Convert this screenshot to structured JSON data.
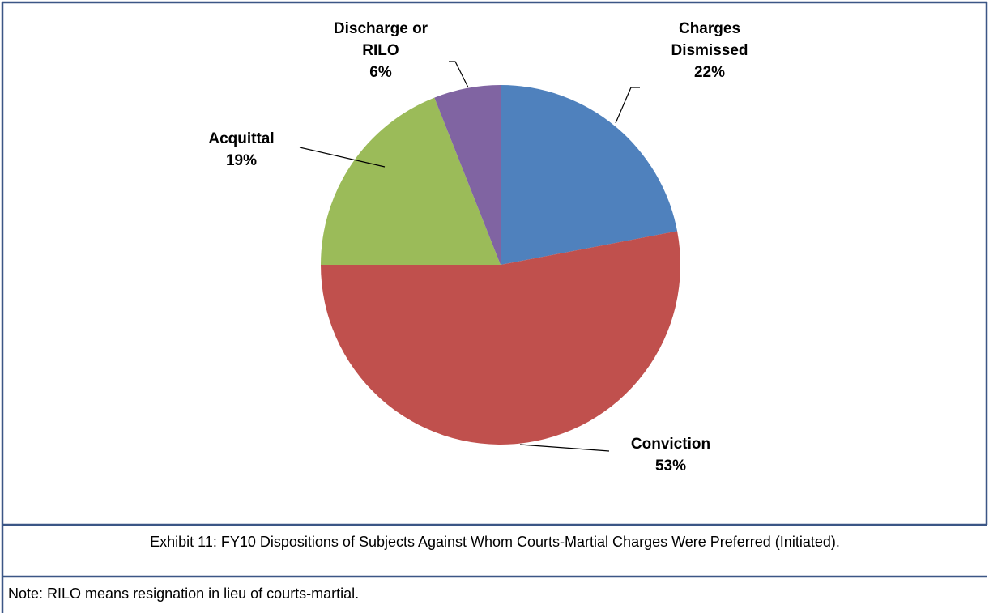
{
  "chart_data": {
    "type": "pie",
    "categories": [
      "Charges Dismissed",
      "Conviction",
      "Acquittal",
      "Discharge or RILO"
    ],
    "values": [
      22,
      53,
      19,
      6
    ],
    "value_labels": [
      "22%",
      "53%",
      "19%",
      "6%"
    ],
    "colors": [
      "#4f81bd",
      "#c0504d",
      "#9bbb59",
      "#8064a2"
    ],
    "caption": "Exhibit 11: FY10 Dispositions of Subjects Against Whom Courts-Martial Charges Were Preferred (Initiated).",
    "note": "Note: RILO means resignation in lieu of courts-martial."
  }
}
